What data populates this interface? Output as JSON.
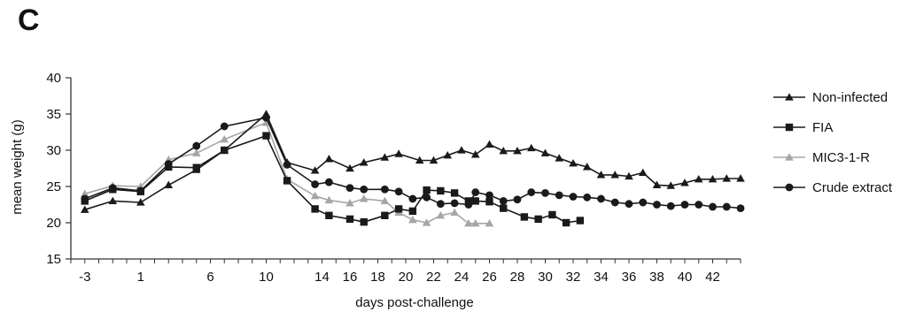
{
  "panel_label": "C",
  "chart_data": {
    "type": "line",
    "title": "",
    "xlabel": "days post-challenge",
    "ylabel": "mean weight (g)",
    "xlim": [
      -4,
      44
    ],
    "ylim": [
      15,
      40
    ],
    "x_ticks": [
      -3,
      1,
      6,
      10,
      14,
      16,
      18,
      20,
      22,
      24,
      26,
      28,
      30,
      32,
      34,
      36,
      38,
      40,
      42
    ],
    "x_tick_labels": [
      "-3",
      "1",
      "6",
      "10",
      "14",
      "16",
      "18",
      "20",
      "22",
      "24",
      "26",
      "28",
      "30",
      "32",
      "34",
      "36",
      "38",
      "40",
      "42"
    ],
    "y_ticks": [
      15,
      20,
      25,
      30,
      35,
      40
    ],
    "grid": false,
    "legend_position": "right",
    "series": [
      {
        "name": "Non-infected",
        "marker": "triangle",
        "color": "#1a1a1a",
        "points": [
          [
            -3,
            21.8
          ],
          [
            -1,
            23
          ],
          [
            1,
            22.8
          ],
          [
            3,
            25.2
          ],
          [
            5,
            27.3
          ],
          [
            7,
            30
          ],
          [
            10,
            35
          ],
          [
            11.5,
            28.3
          ],
          [
            13.5,
            27.2
          ],
          [
            14.5,
            28.8
          ],
          [
            16,
            27.5
          ],
          [
            17,
            28.3
          ],
          [
            18.5,
            29
          ],
          [
            19.5,
            29.5
          ],
          [
            21,
            28.6
          ],
          [
            22,
            28.6
          ],
          [
            23,
            29.3
          ],
          [
            24,
            30
          ],
          [
            25,
            29.4
          ],
          [
            26,
            30.8
          ],
          [
            27,
            29.9
          ],
          [
            28,
            29.9
          ],
          [
            29,
            30.3
          ],
          [
            30,
            29.6
          ],
          [
            31,
            28.9
          ],
          [
            32,
            28.2
          ],
          [
            33,
            27.7
          ],
          [
            34,
            26.6
          ],
          [
            35,
            26.6
          ],
          [
            36,
            26.4
          ],
          [
            37,
            26.9
          ],
          [
            38,
            25.2
          ],
          [
            39,
            25.1
          ],
          [
            40,
            25.5
          ],
          [
            41,
            26
          ],
          [
            42,
            26
          ],
          [
            43,
            26.1
          ],
          [
            44,
            26.1
          ]
        ]
      },
      {
        "name": "FIA",
        "marker": "square",
        "color": "#1a1a1a",
        "points": [
          [
            -3,
            23
          ],
          [
            -1,
            24.6
          ],
          [
            1,
            24.3
          ],
          [
            3,
            27.7
          ],
          [
            5,
            27.6
          ],
          [
            7,
            30
          ],
          [
            10,
            32
          ],
          [
            11.5,
            25.8
          ],
          [
            13.5,
            21.9
          ],
          [
            14.5,
            21
          ],
          [
            16,
            20.5
          ],
          [
            17,
            20.1
          ],
          [
            18.5,
            21
          ],
          [
            19.5,
            21.9
          ],
          [
            20.5,
            21.6
          ],
          [
            21.5,
            24.5
          ],
          [
            22.5,
            24.4
          ],
          [
            23.5,
            24.1
          ],
          [
            24.5,
            23
          ],
          [
            25,
            23
          ],
          [
            26,
            22.9
          ],
          [
            27,
            22
          ],
          [
            28.5,
            20.8
          ],
          [
            29.5,
            20.5
          ],
          [
            30.5,
            21.1
          ],
          [
            31.5,
            20
          ],
          [
            32.5,
            20.3
          ]
        ]
      },
      {
        "name": "MIC3-1-R",
        "marker": "triangle",
        "color": "#a6a6a6",
        "points": [
          [
            -3,
            24
          ],
          [
            -1,
            25.1
          ],
          [
            1,
            25
          ],
          [
            3,
            28.7
          ],
          [
            5,
            29.6
          ],
          [
            7,
            31.5
          ],
          [
            10,
            33.8
          ],
          [
            11.5,
            26
          ],
          [
            13.5,
            23.7
          ],
          [
            14.5,
            23.1
          ],
          [
            16,
            22.7
          ],
          [
            17,
            23.3
          ],
          [
            18.5,
            23
          ],
          [
            19.5,
            21.4
          ],
          [
            20.5,
            20.4
          ],
          [
            21.5,
            20
          ],
          [
            22.5,
            21
          ],
          [
            23.5,
            21.4
          ],
          [
            24.5,
            19.9
          ],
          [
            25,
            19.9
          ],
          [
            26,
            19.9
          ]
        ]
      },
      {
        "name": "Crude extract",
        "marker": "circle",
        "color": "#1a1a1a",
        "points": [
          [
            -3,
            23.3
          ],
          [
            -1,
            24.8
          ],
          [
            1,
            24.4
          ],
          [
            3,
            28.1
          ],
          [
            5,
            30.6
          ],
          [
            7,
            33.3
          ],
          [
            10,
            34.5
          ],
          [
            11.5,
            28
          ],
          [
            13.5,
            25.3
          ],
          [
            14.5,
            25.6
          ],
          [
            16,
            24.8
          ],
          [
            17,
            24.6
          ],
          [
            18.5,
            24.6
          ],
          [
            19.5,
            24.3
          ],
          [
            20.5,
            23.3
          ],
          [
            21.5,
            23.5
          ],
          [
            22.5,
            22.6
          ],
          [
            23.5,
            22.7
          ],
          [
            24.5,
            22.5
          ],
          [
            25,
            24.2
          ],
          [
            26,
            23.8
          ],
          [
            27,
            23
          ],
          [
            28,
            23.2
          ],
          [
            29,
            24.2
          ],
          [
            30,
            24.1
          ],
          [
            31,
            23.8
          ],
          [
            32,
            23.6
          ],
          [
            33,
            23.5
          ],
          [
            34,
            23.3
          ],
          [
            35,
            22.8
          ],
          [
            36,
            22.6
          ],
          [
            37,
            22.8
          ],
          [
            38,
            22.5
          ],
          [
            39,
            22.3
          ],
          [
            40,
            22.5
          ],
          [
            41,
            22.5
          ],
          [
            42,
            22.2
          ],
          [
            43,
            22.2
          ],
          [
            44,
            22
          ]
        ]
      }
    ]
  }
}
